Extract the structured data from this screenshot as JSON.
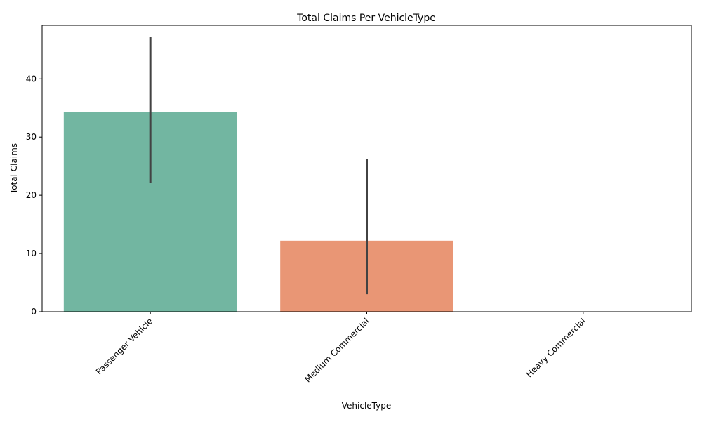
{
  "chart_data": {
    "type": "bar",
    "title": "Total Claims Per VehicleType",
    "xlabel": "VehicleType",
    "ylabel": "Total Claims",
    "categories": [
      "Passenger Vehicle",
      "Medium Commercial",
      "Heavy Commercial"
    ],
    "values": [
      34.3,
      12.2,
      0
    ],
    "error_low": [
      22.1,
      3.0,
      0
    ],
    "error_high": [
      47.2,
      26.2,
      0
    ],
    "colors": [
      "#72b6a1",
      "#e99675",
      "#8da0cb"
    ],
    "error_color": "#424242",
    "ylim": [
      0,
      49.2
    ],
    "yticks": [
      0,
      10,
      20,
      30,
      40
    ],
    "ytick_labels": [
      "0",
      "10",
      "20",
      "30",
      "40"
    ],
    "xtick_rotation": 45,
    "grid": false,
    "legend": "none"
  }
}
